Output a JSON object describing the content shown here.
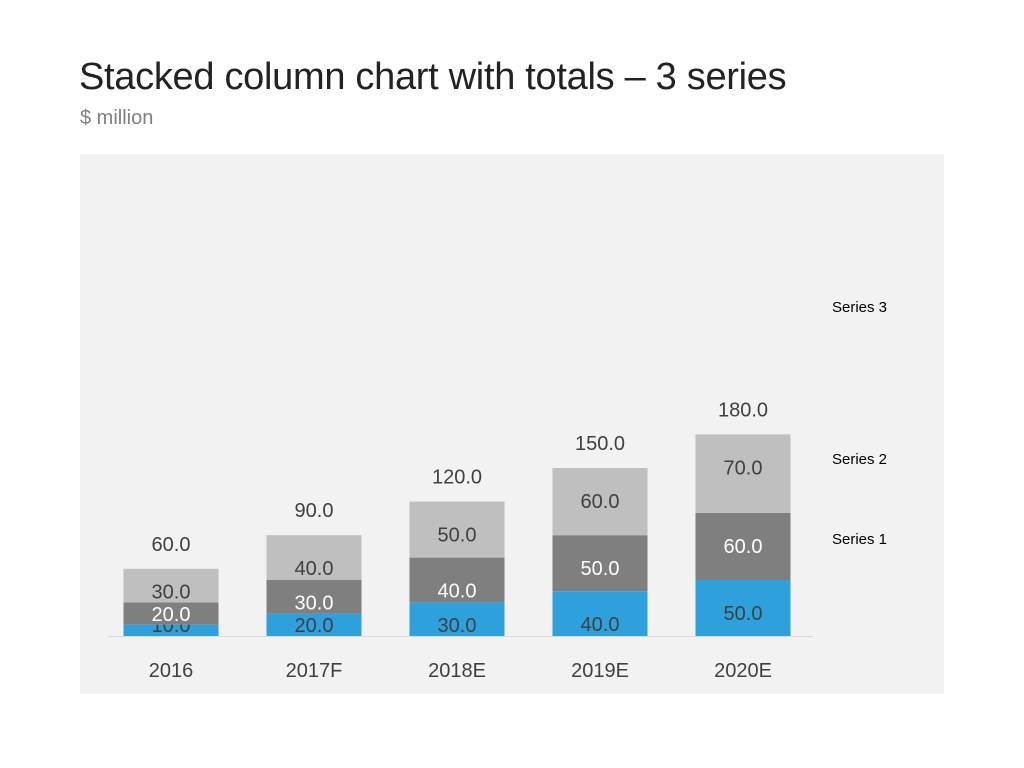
{
  "title": "Stacked column chart with totals – 3 series",
  "subtitle": "$ million",
  "chart_data": {
    "type": "bar",
    "stacked": true,
    "categories": [
      "2016",
      "2017F",
      "2018E",
      "2019E",
      "2020E"
    ],
    "series": [
      {
        "name": "Series 1",
        "values": [
          10.0,
          20.0,
          30.0,
          40.0,
          50.0
        ],
        "color": "#2ea1dd",
        "label_color": "#404040"
      },
      {
        "name": "Series 2",
        "values": [
          20.0,
          30.0,
          40.0,
          50.0,
          60.0
        ],
        "color": "#7f7f7f",
        "label_color": "#ffffff"
      },
      {
        "name": "Series 3",
        "values": [
          30.0,
          40.0,
          50.0,
          60.0,
          70.0
        ],
        "color": "#bfbfbf",
        "label_color": "#404040"
      }
    ],
    "totals": [
      60.0,
      90.0,
      120.0,
      150.0,
      180.0
    ],
    "ylim": [
      0,
      180
    ],
    "grid": false,
    "legend": "right",
    "background": "#f2f2f2"
  }
}
